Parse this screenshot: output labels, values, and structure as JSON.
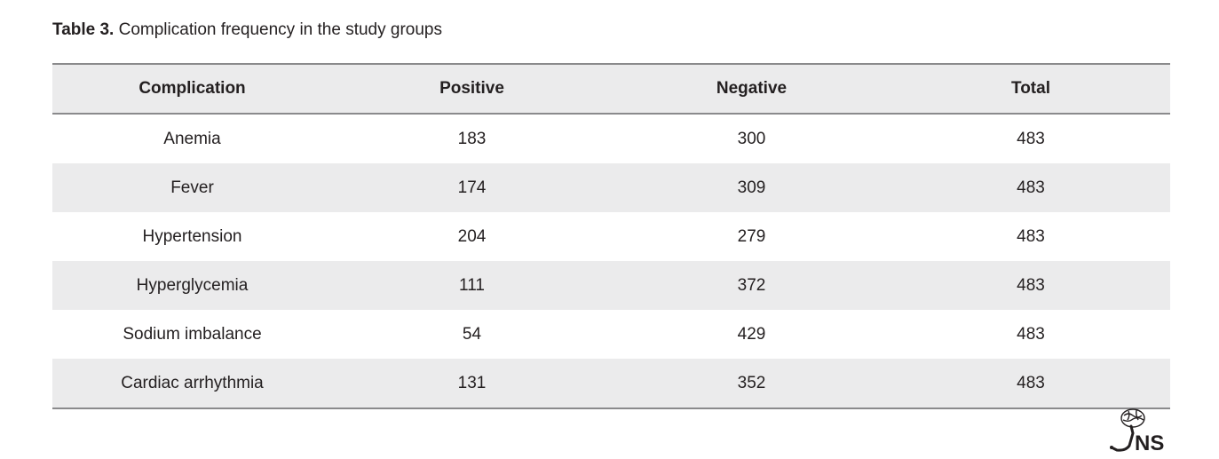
{
  "caption": {
    "label": "Table 3.",
    "text": " Complication frequency in the study groups"
  },
  "table": {
    "headers": [
      "Complication",
      "Positive",
      "Negative",
      "Total"
    ],
    "rows": [
      [
        "Anemia",
        "183",
        "300",
        "483"
      ],
      [
        "Fever",
        "174",
        "309",
        "483"
      ],
      [
        "Hypertension",
        "204",
        "279",
        "483"
      ],
      [
        "Hyperglycemia",
        "111",
        "372",
        "483"
      ],
      [
        "Sodium imbalance",
        "54",
        "429",
        "483"
      ],
      [
        "Cardiac arrhythmia",
        "131",
        "352",
        "483"
      ]
    ]
  },
  "logo": {
    "icon": "jns-journal-logo-icon",
    "text": "NS"
  }
}
